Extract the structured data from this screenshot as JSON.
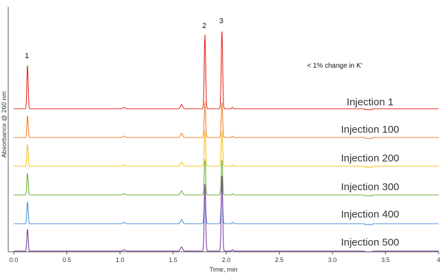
{
  "chart_data": {
    "type": "line",
    "xlabel": "Time, min",
    "ylabel": "Absorbance @ 260 nm",
    "xlim": [
      0,
      4
    ],
    "x_ticks": [
      "0.0",
      "0.5",
      "1.0",
      "1.5",
      "2.0",
      "2.5",
      "3.0",
      "3.5",
      "4"
    ],
    "y_ticks_shown": false,
    "grid": false,
    "annotation": "< 1% change in K'",
    "peak_labels": [
      {
        "label": "1",
        "time": 0.13
      },
      {
        "label": "2",
        "time": 1.8
      },
      {
        "label": "3",
        "time": 1.96
      }
    ],
    "series": [
      {
        "name": "Injection 1",
        "color": "#e8261f"
      },
      {
        "name": "Injection 100",
        "color": "#f07f2a"
      },
      {
        "name": "Injection 200",
        "color": "#f6c21a"
      },
      {
        "name": "Injection 300",
        "color": "#6bb03d"
      },
      {
        "name": "Injection 400",
        "color": "#4f8fd8"
      },
      {
        "name": "Injection 500",
        "color": "#7b3fa0"
      }
    ]
  }
}
